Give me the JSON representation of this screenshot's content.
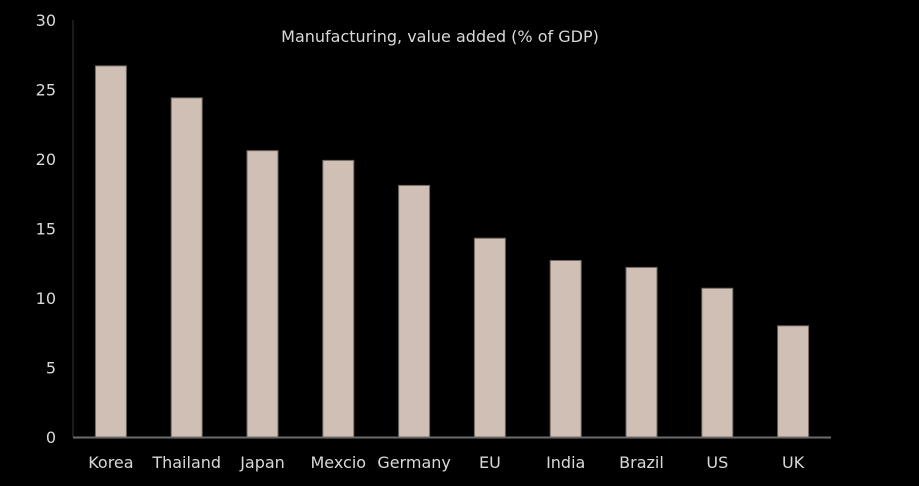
{
  "chart_data": {
    "type": "bar",
    "title": "Manufacturing, value added (% of GDP)",
    "xlabel": "",
    "ylabel": "",
    "categories": [
      "Korea",
      "Thailand",
      "Japan",
      "Mexcio",
      "Germany",
      "EU",
      "India",
      "Brazil",
      "US",
      "UK"
    ],
    "values": [
      26.7,
      24.4,
      20.6,
      19.9,
      18.1,
      14.3,
      12.7,
      12.2,
      10.7,
      8.0
    ],
    "ylim": [
      0,
      30
    ],
    "yticks": [
      0,
      5,
      10,
      15,
      20,
      25,
      30
    ],
    "grid": false,
    "legend": "none",
    "colors": {
      "background": "#000000",
      "bar_fill": "#d0bfb4",
      "bar_stroke": "#6e6660",
      "x_axis": "#6b6b6b",
      "y_axis": "#262626",
      "text": "#d9d9d9"
    }
  }
}
